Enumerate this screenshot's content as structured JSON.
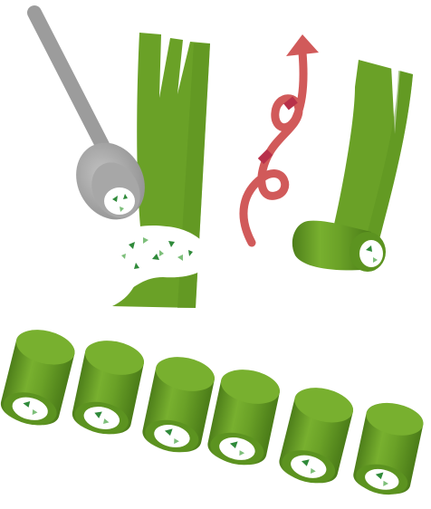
{
  "colors": {
    "background": "#ffffff",
    "leaf_green": "#6aa127",
    "leaf_green_dark": "#4d7e1a",
    "leaf_green_light": "#8cc23e",
    "filling_white": "#ffffff",
    "herb_green": "#2f8a3a",
    "herb_green_light": "#7dbf7a",
    "spoon_gray": "#9c9c9c",
    "spoon_gray_light": "#b4b4b4",
    "arrow_red": "#d15a5a",
    "arrow_red_dark": "#b8304a"
  },
  "steps": [
    {
      "id": "spread-filling",
      "icons": [
        "spoon-icon",
        "leek-leaf-icon",
        "filling-blob-icon"
      ]
    },
    {
      "id": "roll-up",
      "icons": [
        "curly-arrow-icon",
        "rolling-leaf-icon"
      ]
    },
    {
      "id": "cut-pieces",
      "icons": [
        "roll-piece-icon"
      ],
      "piece_count": 6
    }
  ]
}
